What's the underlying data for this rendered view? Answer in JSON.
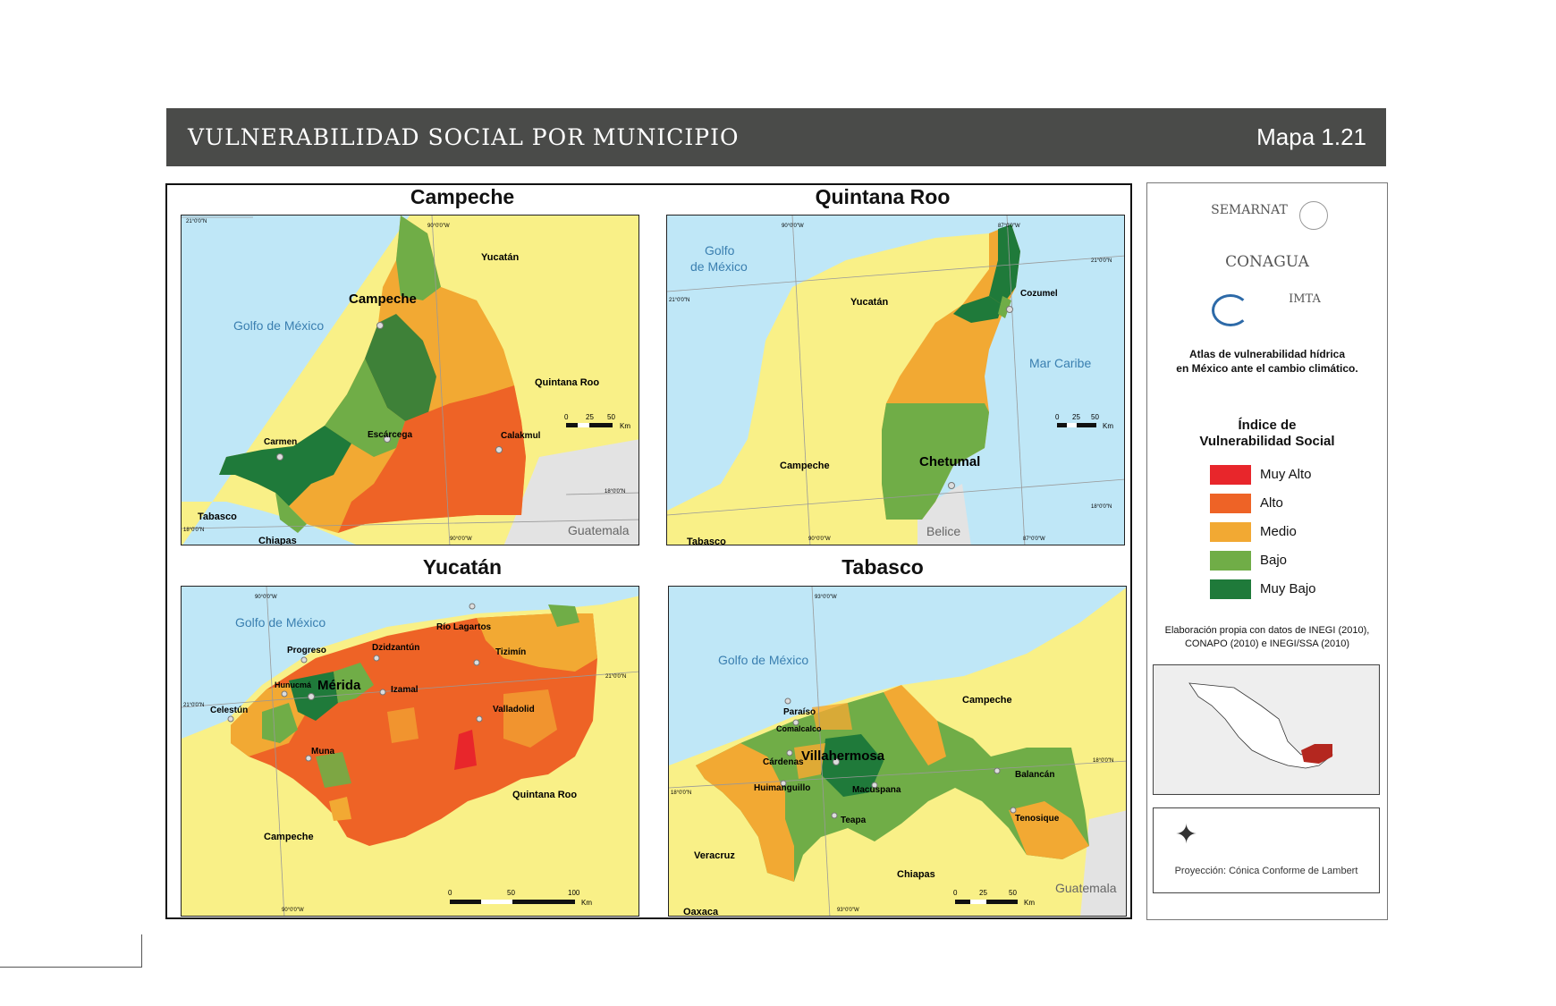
{
  "header": {
    "title": "VULNERABILIDAD SOCIAL POR MUNICIPIO",
    "map_code": "Mapa 1.21"
  },
  "panels": {
    "campeche": {
      "title": "Campeche",
      "labels": {
        "capital": "Campeche",
        "yucatan": "Yucatán",
        "golfo": "Golfo de México",
        "qroo": "Quintana Roo",
        "carmen": "Carmen",
        "escarcega": "Escárcega",
        "calakmul": "Calakmul",
        "tabasco": "Tabasco",
        "chiapas": "Chiapas",
        "guatemala": "Guatemala"
      },
      "coords": {
        "top_lon": "90°0'0\"W",
        "bottom_lon": "90°0'0\"W",
        "lat_top": "21°0'0\"N",
        "lat_bottom": "18°0'0\"N",
        "lat_right": "18°0'0\"N"
      },
      "scale": [
        "0",
        "25",
        "50",
        "Km"
      ]
    },
    "quintana_roo": {
      "title": "Quintana Roo",
      "labels": {
        "golfo_1": "Golfo",
        "golfo_2": "de México",
        "yucatan": "Yucatán",
        "cozumel": "Cozumel",
        "mar_caribe": "Mar Caribe",
        "campeche": "Campeche",
        "chetumal": "Chetumal",
        "belice": "Belice",
        "tabasco": "Tabasco"
      },
      "coords": {
        "top_lon_1": "90°0'0\"W",
        "top_lon_2": "87°0'0\"W",
        "left_lat": "21°0'0\"N",
        "right_lat_1": "21°0'0\"N",
        "right_lat_2": "18°0'0\"N",
        "bottom_lon_1": "90°0'0\"W",
        "bottom_lon_2": "87°0'0\"W"
      },
      "scale": [
        "0",
        "25",
        "50",
        "Km"
      ]
    },
    "yucatan": {
      "title": "Yucatán",
      "labels": {
        "golfo": "Golfo de México",
        "rio_lagartos": "Río Lagartos",
        "progreso": "Progreso",
        "dzidzantun": "Dzidzantún",
        "tizimin": "Tizimín",
        "hunucma": "Hunucmá",
        "merida": "Mérida",
        "izamal": "Izamal",
        "celestun": "Celestún",
        "valladolid": "Valladolid",
        "muna": "Muna",
        "qroo": "Quintana Roo",
        "campeche": "Campeche"
      },
      "coords": {
        "top_lon": "90°0'0\"W",
        "left_lat": "21°0'0\"N",
        "right_lat": "21°0'0\"N",
        "bottom_lon": "90°0'0\"W"
      },
      "scale": [
        "0",
        "50",
        "100",
        "Km"
      ]
    },
    "tabasco": {
      "title": "Tabasco",
      "labels": {
        "golfo": "Golfo de México",
        "campeche": "Campeche",
        "paraiso": "Paraíso",
        "comalcalco": "Comalcalco",
        "cardenas": "Cárdenas",
        "villahermosa": "Villahermosa",
        "balancan": "Balancán",
        "huimanguillo": "Huimanguillo",
        "macuspana": "Macuspana",
        "teapa": "Teapa",
        "tenosique": "Tenosique",
        "veracruz": "Veracruz",
        "chiapas": "Chiapas",
        "guatemala": "Guatemala",
        "oaxaca": "Oaxaca"
      },
      "coords": {
        "top_lon": "93°0'0\"W",
        "left_lat": "18°0'0\"N",
        "right_lat": "18°0'0\"N",
        "bottom_lon": "93°0'0\"W"
      },
      "scale": [
        "0",
        "25",
        "50",
        "Km"
      ]
    }
  },
  "sidebar": {
    "logos": {
      "semarnat": "SEMARNAT",
      "conagua": "CONAGUA",
      "imta": "IMTA"
    },
    "atlas_line1": "Atlas de vulnerabilidad hídrica",
    "atlas_line2": "en México ante el cambio climático.",
    "legend_title_1": "Índice de",
    "legend_title_2": "Vulnerabilidad Social",
    "legend": [
      {
        "label": "Muy Alto",
        "color": "#e8262b"
      },
      {
        "label": "Alto",
        "color": "#ee6326"
      },
      {
        "label": "Medio",
        "color": "#f2a933"
      },
      {
        "label": "Bajo",
        "color": "#70ad47"
      },
      {
        "label": "Muy Bajo",
        "color": "#1f7a3a"
      }
    ],
    "source_line1": "Elaboración propia con datos de INEGI (2010),",
    "source_line2": "CONAPO (2010) e INEGI/SSA (2010)",
    "projection": "Proyección: Cónica Conforme de Lambert"
  },
  "colors": {
    "sea": "#bfe7f7",
    "land": "#f9f087",
    "border_country": "#e3e3e3"
  }
}
